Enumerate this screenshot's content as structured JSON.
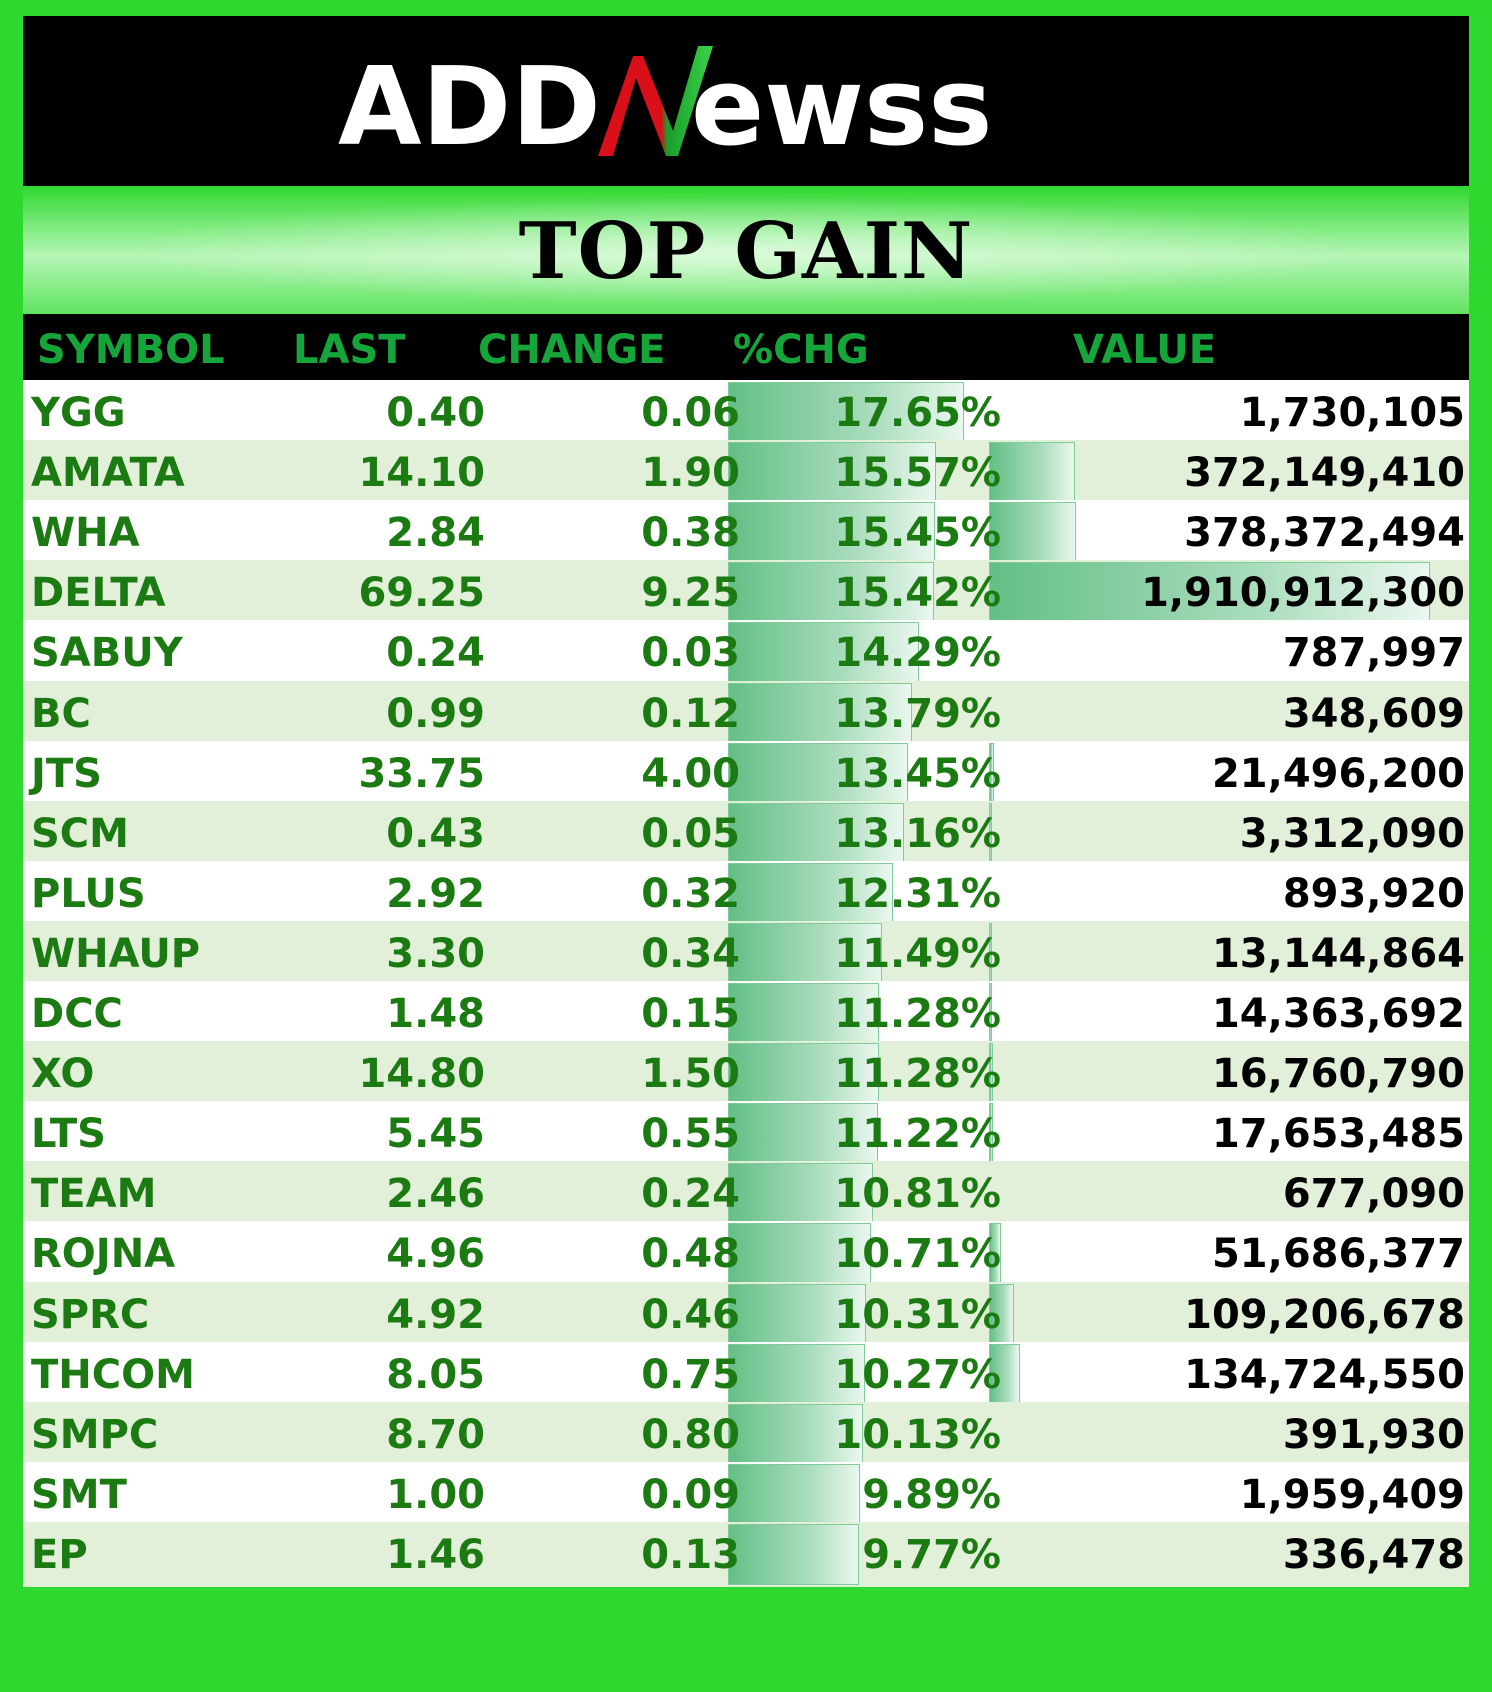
{
  "logo": {
    "text": "ADDNewss",
    "prefix": "ADD",
    "mark": "N",
    "suffix": "ewss"
  },
  "title": "TOP GAIN",
  "columns": [
    "SYMBOL",
    "LAST",
    "CHANGE",
    "%CHG",
    "VALUE"
  ],
  "colors": {
    "frame": "#2fd82f",
    "header_text": "#16a53a",
    "cell_text": "#1c7a12",
    "value_text": "#000000",
    "bar": "#63bf86",
    "row_alt": "#e2f0da"
  },
  "rows": [
    {
      "symbol": "YGG",
      "last": "0.40",
      "change": "0.06",
      "pct": "17.65%",
      "pct_value": 17.65,
      "value": "1,730,105",
      "value_num": 1730105
    },
    {
      "symbol": "AMATA",
      "last": "14.10",
      "change": "1.90",
      "pct": "15.57%",
      "pct_value": 15.57,
      "value": "372,149,410",
      "value_num": 372149410
    },
    {
      "symbol": "WHA",
      "last": "2.84",
      "change": "0.38",
      "pct": "15.45%",
      "pct_value": 15.45,
      "value": "378,372,494",
      "value_num": 378372494
    },
    {
      "symbol": "DELTA",
      "last": "69.25",
      "change": "9.25",
      "pct": "15.42%",
      "pct_value": 15.42,
      "value": "1,910,912,300",
      "value_num": 1910912300
    },
    {
      "symbol": "SABUY",
      "last": "0.24",
      "change": "0.03",
      "pct": "14.29%",
      "pct_value": 14.29,
      "value": "787,997",
      "value_num": 787997
    },
    {
      "symbol": "BC",
      "last": "0.99",
      "change": "0.12",
      "pct": "13.79%",
      "pct_value": 13.79,
      "value": "348,609",
      "value_num": 348609
    },
    {
      "symbol": "JTS",
      "last": "33.75",
      "change": "4.00",
      "pct": "13.45%",
      "pct_value": 13.45,
      "value": "21,496,200",
      "value_num": 21496200
    },
    {
      "symbol": "SCM",
      "last": "0.43",
      "change": "0.05",
      "pct": "13.16%",
      "pct_value": 13.16,
      "value": "3,312,090",
      "value_num": 3312090
    },
    {
      "symbol": "PLUS",
      "last": "2.92",
      "change": "0.32",
      "pct": "12.31%",
      "pct_value": 12.31,
      "value": "893,920",
      "value_num": 893920
    },
    {
      "symbol": "WHAUP",
      "last": "3.30",
      "change": "0.34",
      "pct": "11.49%",
      "pct_value": 11.49,
      "value": "13,144,864",
      "value_num": 13144864
    },
    {
      "symbol": "DCC",
      "last": "1.48",
      "change": "0.15",
      "pct": "11.28%",
      "pct_value": 11.28,
      "value": "14,363,692",
      "value_num": 14363692
    },
    {
      "symbol": "XO",
      "last": "14.80",
      "change": "1.50",
      "pct": "11.28%",
      "pct_value": 11.28,
      "value": "16,760,790",
      "value_num": 16760790
    },
    {
      "symbol": "LTS",
      "last": "5.45",
      "change": "0.55",
      "pct": "11.22%",
      "pct_value": 11.22,
      "value": "17,653,485",
      "value_num": 17653485
    },
    {
      "symbol": "TEAM",
      "last": "2.46",
      "change": "0.24",
      "pct": "10.81%",
      "pct_value": 10.81,
      "value": "677,090",
      "value_num": 677090
    },
    {
      "symbol": "ROJNA",
      "last": "4.96",
      "change": "0.48",
      "pct": "10.71%",
      "pct_value": 10.71,
      "value": "51,686,377",
      "value_num": 51686377
    },
    {
      "symbol": "SPRC",
      "last": "4.92",
      "change": "0.46",
      "pct": "10.31%",
      "pct_value": 10.31,
      "value": "109,206,678",
      "value_num": 109206678
    },
    {
      "symbol": "THCOM",
      "last": "8.05",
      "change": "0.75",
      "pct": "10.27%",
      "pct_value": 10.27,
      "value": "134,724,550",
      "value_num": 134724550
    },
    {
      "symbol": "SMPC",
      "last": "8.70",
      "change": "0.80",
      "pct": "10.13%",
      "pct_value": 10.13,
      "value": "391,930",
      "value_num": 391930
    },
    {
      "symbol": "SMT",
      "last": "1.00",
      "change": "0.09",
      "pct": "9.89%",
      "pct_value": 9.89,
      "value": "1,959,409",
      "value_num": 1959409
    },
    {
      "symbol": "EP",
      "last": "1.46",
      "change": "0.13",
      "pct": "9.77%",
      "pct_value": 9.77,
      "value": "336,478",
      "value_num": 336478
    }
  ]
}
